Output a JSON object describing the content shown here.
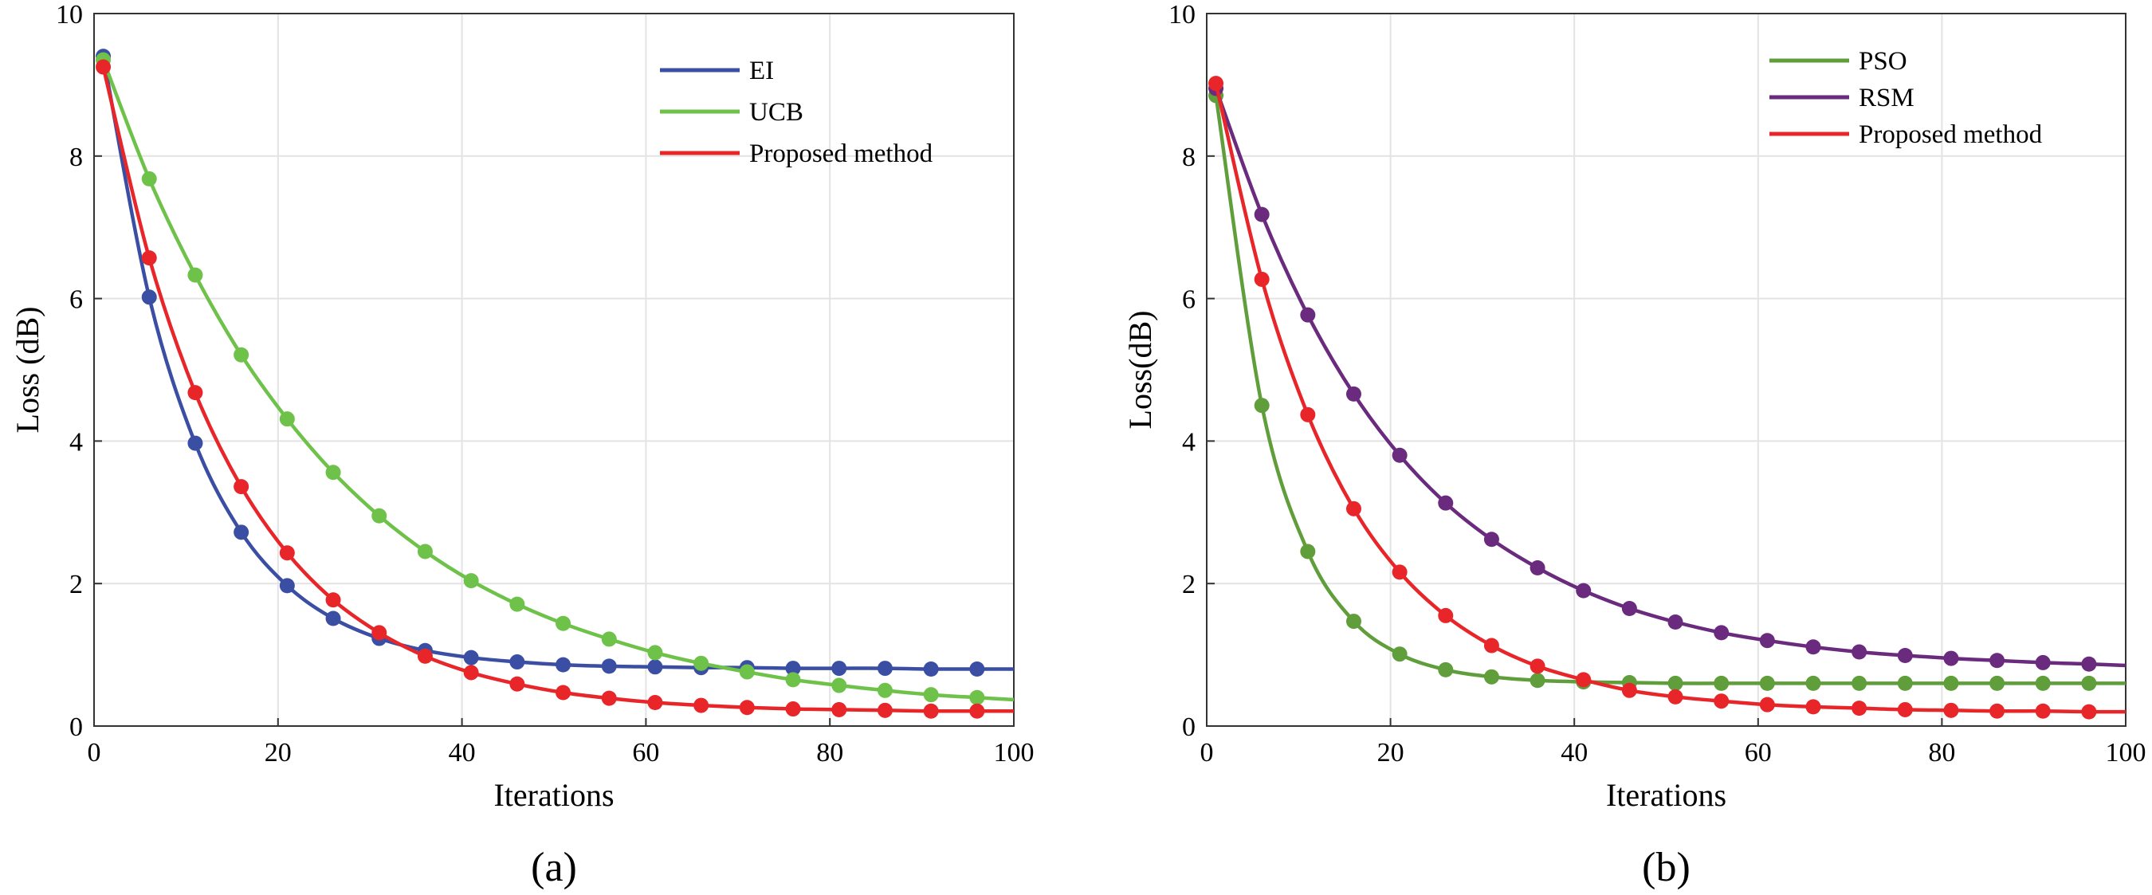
{
  "chart_data": [
    {
      "type": "line",
      "subtitle": "(a)",
      "xlabel": "Iterations",
      "ylabel": "Loss (dB)",
      "xlim": [
        0,
        100
      ],
      "ylim": [
        0,
        10
      ],
      "xticks": [
        0,
        20,
        40,
        60,
        80,
        100
      ],
      "yticks": [
        0,
        2,
        4,
        6,
        8,
        10
      ],
      "xtick_labels": [
        "0",
        "20",
        "40",
        "60",
        "80",
        "100"
      ],
      "ytick_labels": [
        "0",
        "2",
        "4",
        "6",
        "8",
        "10"
      ],
      "grid": true,
      "legend_position": "top-right",
      "x": [
        1,
        6,
        11,
        16,
        21,
        26,
        31,
        36,
        41,
        46,
        51,
        56,
        61,
        66,
        71,
        76,
        81,
        86,
        91,
        96,
        100
      ],
      "series": [
        {
          "name": "EI",
          "color": "#3a4fa3",
          "marker_until": 96,
          "values": [
            9.4,
            6.02,
            3.97,
            2.72,
            1.97,
            1.51,
            1.23,
            1.06,
            0.96,
            0.9,
            0.86,
            0.84,
            0.83,
            0.82,
            0.82,
            0.81,
            0.81,
            0.81,
            0.8,
            0.8,
            0.8
          ]
        },
        {
          "name": "UCB",
          "color": "#6ec24a",
          "marker_until": 96,
          "values": [
            9.35,
            7.68,
            6.33,
            5.21,
            4.31,
            3.56,
            2.95,
            2.45,
            2.04,
            1.71,
            1.44,
            1.22,
            1.03,
            0.88,
            0.76,
            0.65,
            0.57,
            0.5,
            0.44,
            0.4,
            0.37
          ]
        },
        {
          "name": "Proposed method",
          "color": "#e8262a",
          "marker_until": 96,
          "values": [
            9.25,
            6.57,
            4.68,
            3.36,
            2.43,
            1.77,
            1.31,
            0.98,
            0.75,
            0.59,
            0.47,
            0.39,
            0.33,
            0.29,
            0.26,
            0.24,
            0.23,
            0.22,
            0.21,
            0.21,
            0.21
          ]
        }
      ]
    },
    {
      "type": "line",
      "subtitle": "(b)",
      "xlabel": "Iterations",
      "ylabel": "Loss(dB)",
      "xlim": [
        0,
        100
      ],
      "ylim": [
        0,
        10
      ],
      "xticks": [
        0,
        20,
        40,
        60,
        80,
        100
      ],
      "yticks": [
        0,
        2,
        4,
        6,
        8,
        10
      ],
      "xtick_labels": [
        "0",
        "20",
        "40",
        "60",
        "80",
        "100"
      ],
      "ytick_labels": [
        "0",
        "2",
        "4",
        "6",
        "8",
        "10"
      ],
      "grid": true,
      "legend_position": "top-right",
      "x": [
        1,
        6,
        11,
        16,
        21,
        26,
        31,
        36,
        41,
        46,
        51,
        56,
        61,
        66,
        71,
        76,
        81,
        86,
        91,
        96,
        100
      ],
      "series": [
        {
          "name": "PSO",
          "color": "#5f9e3a",
          "marker_until": 96,
          "values": [
            8.85,
            4.5,
            2.45,
            1.47,
            1.01,
            0.79,
            0.69,
            0.64,
            0.62,
            0.61,
            0.6,
            0.6,
            0.6,
            0.6,
            0.6,
            0.6,
            0.6,
            0.6,
            0.6,
            0.6,
            0.6
          ]
        },
        {
          "name": "RSM",
          "color": "#6a2a7e",
          "marker_until": 96,
          "values": [
            8.95,
            7.18,
            5.77,
            4.66,
            3.8,
            3.13,
            2.62,
            2.22,
            1.9,
            1.65,
            1.46,
            1.31,
            1.2,
            1.11,
            1.04,
            0.99,
            0.95,
            0.92,
            0.89,
            0.87,
            0.85
          ]
        },
        {
          "name": "Proposed method",
          "color": "#e8262a",
          "marker_until": 96,
          "values": [
            9.02,
            6.27,
            4.37,
            3.05,
            2.16,
            1.55,
            1.13,
            0.84,
            0.65,
            0.5,
            0.41,
            0.35,
            0.3,
            0.27,
            0.25,
            0.23,
            0.22,
            0.21,
            0.21,
            0.2,
            0.2
          ]
        }
      ]
    }
  ]
}
